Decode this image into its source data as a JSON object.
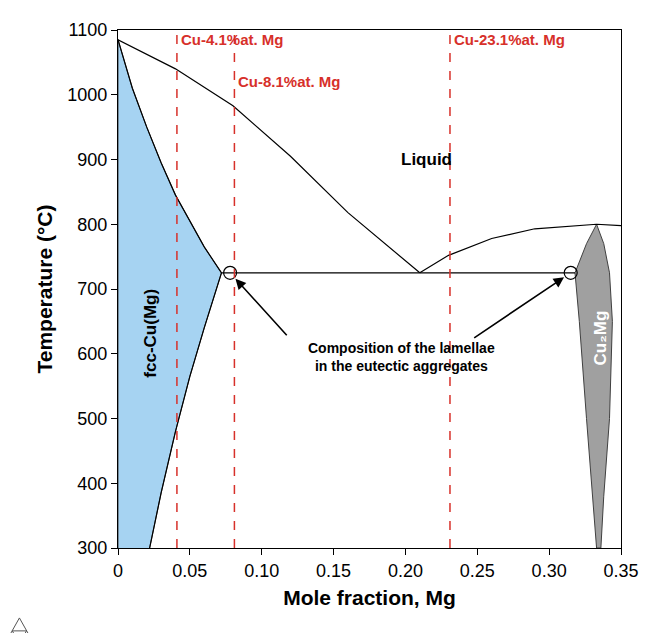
{
  "chart_data": {
    "type": "phase_diagram",
    "xlabel": "Mole fraction, Mg",
    "ylabel": "Temperature (°C)",
    "xlim": [
      0,
      0.35
    ],
    "ylim": [
      300,
      1100
    ],
    "xticks": [
      0,
      0.05,
      {
        "value": 0.1,
        "label": "0.10"
      },
      0.15,
      {
        "value": 0.2,
        "label": "0.20"
      },
      0.25,
      {
        "value": 0.3,
        "label": "0.30"
      },
      0.35
    ],
    "yticks": [
      300,
      400,
      500,
      600,
      700,
      800,
      900,
      1000,
      1100
    ],
    "grid": false,
    "color": "#000000",
    "regions": [
      {
        "label": "fcc-Cu(Mg)",
        "color": "#a6d3f2",
        "label_x": 0.022,
        "label_y": 632,
        "x": [
          0,
          0,
          0.01,
          0.02,
          0.03,
          0.04,
          0.05,
          0.06,
          0.072,
          0.06,
          0.05,
          0.04,
          0.03,
          0.022
        ],
        "y": [
          300,
          1085,
          1010,
          950,
          895,
          845,
          805,
          765,
          725,
          640,
          565,
          480,
          385,
          300
        ]
      },
      {
        "label": "Cu₂Mg",
        "color": "#a0a0a0",
        "label_x": 0.336,
        "label_y": 625,
        "x": [
          0.333,
          0.326,
          0.318,
          0.321,
          0.326,
          0.33,
          0.333,
          0.336,
          0.338,
          0.342,
          0.344,
          0.342,
          0.338,
          0.333
        ],
        "y": [
          800,
          770,
          725,
          650,
          500,
          380,
          300,
          300,
          380,
          500,
          650,
          725,
          770,
          800
        ]
      }
    ],
    "phase_boundaries": [
      {
        "x": [
          0,
          0.04,
          0.08,
          0.12,
          0.16,
          0.21
        ],
        "y": [
          1085,
          1040,
          983,
          905,
          818,
          725
        ]
      },
      {
        "x": [
          0,
          0.01,
          0.02,
          0.03,
          0.04,
          0.05,
          0.06,
          0.072,
          0.06,
          0.05,
          0.04,
          0.03,
          0.022
        ],
        "y": [
          1085,
          1010,
          950,
          895,
          845,
          805,
          765,
          725,
          640,
          565,
          480,
          385,
          300
        ]
      },
      {
        "x": [
          0.072,
          0.318
        ],
        "y": [
          725,
          725
        ]
      },
      {
        "x": [
          0.21,
          0.23,
          0.26,
          0.29,
          0.333,
          0.35
        ],
        "y": [
          725,
          752,
          778,
          793,
          800,
          798
        ]
      }
    ],
    "compositions": {
      "color": "#d7302a",
      "line_style": "dash",
      "lines": [
        {
          "x": 0.041,
          "label": "Cu-4.1%at. Mg",
          "label_y": 1085
        },
        {
          "x": 0.081,
          "label": "Cu-8.1%at. Mg",
          "label_y": 1020
        },
        {
          "x": 0.231,
          "label": "Cu-23.1%at. Mg",
          "label_y": 1085
        }
      ]
    },
    "annotations": [
      {
        "text": "Liquid",
        "x": 0.215,
        "y": 900
      }
    ],
    "eutectic_lamellae": {
      "text": [
        "Composition of the lamellae",
        "in the eutectic aggregates"
      ],
      "x": 0.197,
      "y": 595,
      "marker": "open circle",
      "points": {
        "x": [
          0.078,
          0.315
        ],
        "y": [
          725,
          725
        ]
      }
    }
  }
}
